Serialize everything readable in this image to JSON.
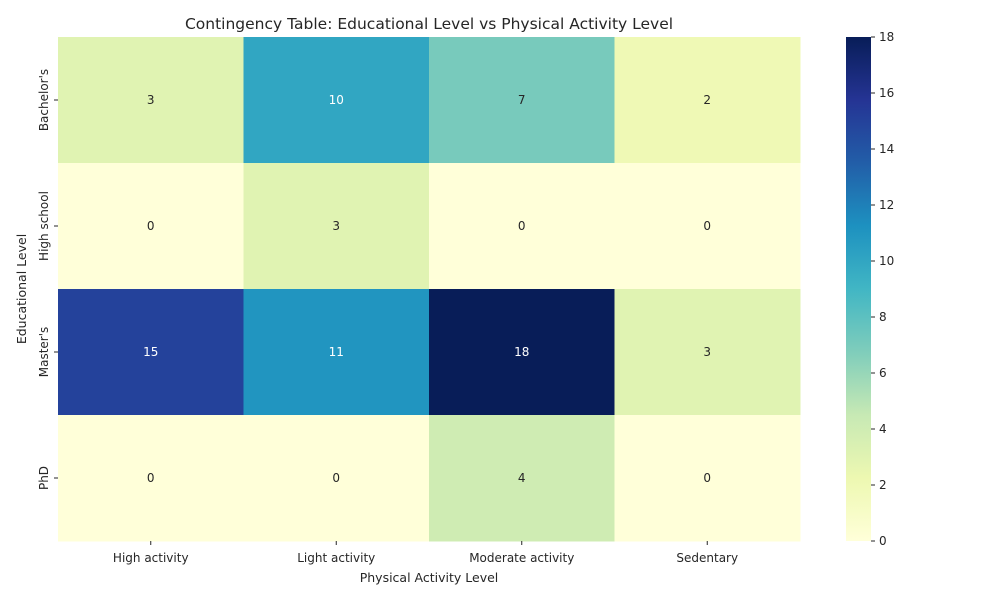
{
  "chart_data": {
    "type": "heatmap",
    "title": "Contingency Table: Educational Level vs Physical Activity Level",
    "xlabel": "Physical Activity Level",
    "ylabel": "Educational Level",
    "x_categories": [
      "High activity",
      "Light activity",
      "Moderate activity",
      "Sedentary"
    ],
    "y_categories": [
      "Bachelor's",
      "High school",
      "Master's",
      "PhD"
    ],
    "values": [
      [
        3,
        10,
        7,
        2
      ],
      [
        0,
        3,
        0,
        0
      ],
      [
        15,
        11,
        18,
        3
      ],
      [
        0,
        0,
        4,
        0
      ]
    ],
    "colorbar": {
      "range": [
        0,
        18
      ],
      "ticks": [
        "0",
        "2",
        "4",
        "6",
        "8",
        "10",
        "12",
        "14",
        "16",
        "18"
      ],
      "colormap": "YlGnBu",
      "colormap_stops": [
        "#ffffd9",
        "#edf8b1",
        "#c7e9b4",
        "#7fcdbb",
        "#41b6c4",
        "#1d91c0",
        "#225ea8",
        "#253494",
        "#081d58"
      ]
    },
    "annotation_colors": {
      "dark_text": "#262626",
      "light_text": "#ffffff"
    }
  }
}
